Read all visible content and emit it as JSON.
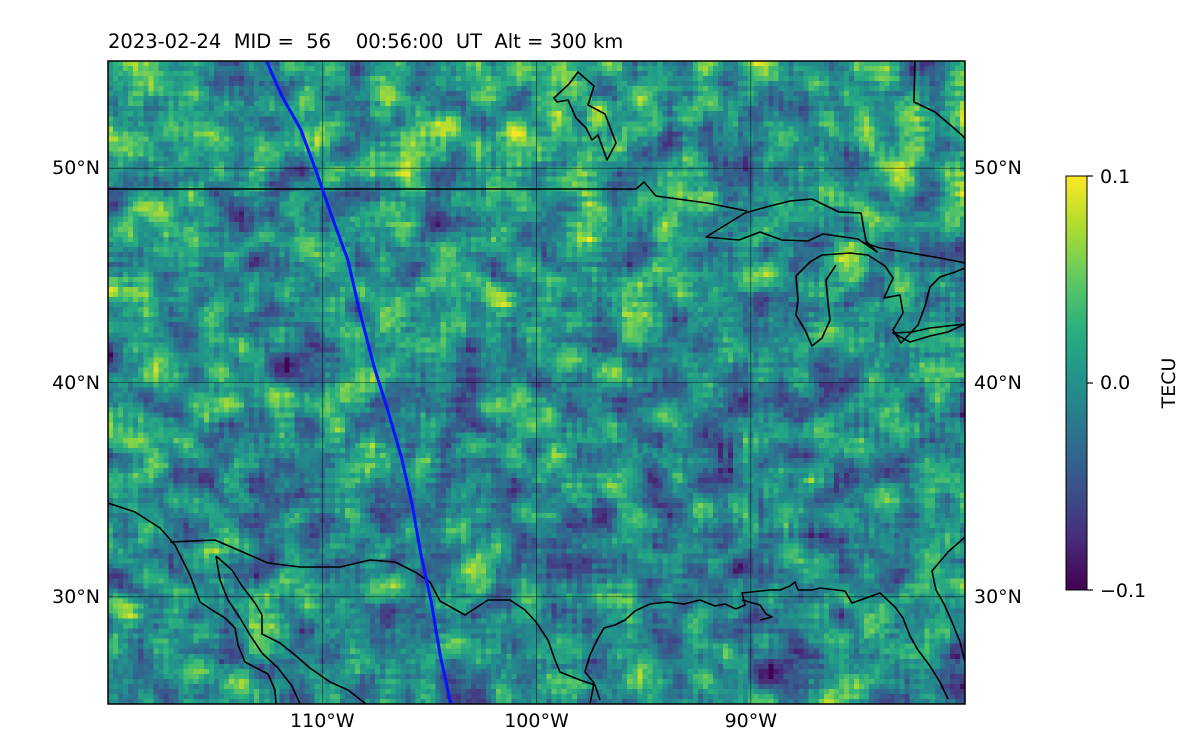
{
  "title": "2023-02-24  MID =  56    00:56:00  UT  Alt = 300 km",
  "colors": {
    "track_line": "#0a14ff",
    "coastline": "#000000",
    "gridline": "#000000",
    "colormap": "viridis"
  },
  "chart_data": {
    "type": "heatmap",
    "projection": "PlateCarree",
    "extent": {
      "lon": [
        -120,
        -80
      ],
      "lat": [
        25,
        55
      ]
    },
    "grid": true,
    "x_ticks": [
      {
        "value": -110,
        "label": "110°W"
      },
      {
        "value": -100,
        "label": "100°W"
      },
      {
        "value": -90,
        "label": "90°W"
      }
    ],
    "y_ticks": [
      {
        "value": 30,
        "label": "30°N"
      },
      {
        "value": 40,
        "label": "40°N"
      },
      {
        "value": 50,
        "label": "50°N"
      }
    ],
    "colorbar": {
      "label": "TECU",
      "min": -0.1,
      "max": 0.1,
      "ticks": [
        {
          "value": 0.1,
          "label": "0.1"
        },
        {
          "value": 0.0,
          "label": "0.0"
        },
        {
          "value": -0.1,
          "label": "−0.1"
        }
      ]
    },
    "track": [
      [
        -112.6,
        55
      ],
      [
        -111.9,
        53.4
      ],
      [
        -111.0,
        51.8
      ],
      [
        -110.3,
        49.9
      ],
      [
        -109.5,
        47.6
      ],
      [
        -108.8,
        45.7
      ],
      [
        -108.3,
        43.5
      ],
      [
        -107.6,
        40.8
      ],
      [
        -107.0,
        38.9
      ],
      [
        -106.3,
        36.5
      ],
      [
        -105.8,
        34.3
      ],
      [
        -105.4,
        32.0
      ],
      [
        -104.9,
        29.7
      ],
      [
        -104.5,
        27.3
      ],
      [
        -104.0,
        25
      ]
    ]
  }
}
